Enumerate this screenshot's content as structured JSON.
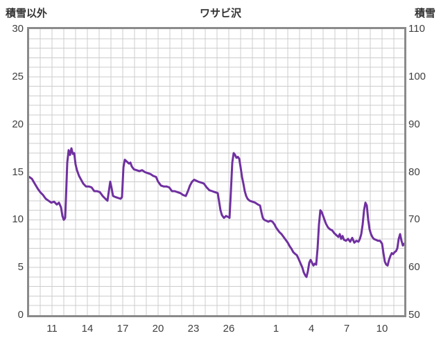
{
  "chart_data": {
    "type": "line",
    "title": "ワサビ沢",
    "series_color": "#7030a0",
    "line_width": 3,
    "left_axis": {
      "label": "積雪以外",
      "min": 0,
      "max": 30,
      "ticks": [
        0,
        5,
        10,
        15,
        20,
        25,
        30
      ]
    },
    "right_axis": {
      "label": "積雪",
      "min": 50,
      "max": 110,
      "ticks": [
        50,
        60,
        70,
        80,
        90,
        100,
        110
      ]
    },
    "x_axis": {
      "tick_labels": [
        "11",
        "14",
        "17",
        "20",
        "23",
        "26",
        "1",
        "4",
        "7",
        "10"
      ],
      "tick_positions": [
        33,
        84,
        135,
        186,
        237,
        288,
        356,
        407,
        458,
        509
      ],
      "x_domain": [
        0,
        541
      ]
    },
    "grid": {
      "color": "#cccccc",
      "horizontal_step": 1,
      "vertical_start": 16,
      "vertical_step": 17
    },
    "points": [
      [
        0,
        14.5
      ],
      [
        4,
        14.3
      ],
      [
        8,
        13.8
      ],
      [
        13,
        13.2
      ],
      [
        16,
        12.9
      ],
      [
        20,
        12.6
      ],
      [
        24,
        12.2
      ],
      [
        28,
        12.0
      ],
      [
        32,
        11.8
      ],
      [
        36,
        11.9
      ],
      [
        40,
        11.6
      ],
      [
        43,
        11.8
      ],
      [
        46,
        11.3
      ],
      [
        48,
        10.4
      ],
      [
        50,
        10.0
      ],
      [
        52,
        10.2
      ],
      [
        53,
        12.0
      ],
      [
        55,
        16.0
      ],
      [
        57,
        17.3
      ],
      [
        59,
        16.8
      ],
      [
        61,
        17.5
      ],
      [
        63,
        16.9
      ],
      [
        65,
        17.0
      ],
      [
        67,
        15.8
      ],
      [
        69,
        15.2
      ],
      [
        72,
        14.6
      ],
      [
        75,
        14.2
      ],
      [
        78,
        13.8
      ],
      [
        82,
        13.5
      ],
      [
        86,
        13.5
      ],
      [
        90,
        13.4
      ],
      [
        94,
        13.0
      ],
      [
        98,
        13.0
      ],
      [
        102,
        12.9
      ],
      [
        106,
        12.5
      ],
      [
        110,
        12.2
      ],
      [
        113,
        12.0
      ],
      [
        115,
        13.0
      ],
      [
        117,
        14.0
      ],
      [
        119,
        13.3
      ],
      [
        121,
        12.5
      ],
      [
        124,
        12.4
      ],
      [
        128,
        12.3
      ],
      [
        132,
        12.2
      ],
      [
        134,
        12.4
      ],
      [
        136,
        15.5
      ],
      [
        138,
        16.3
      ],
      [
        141,
        16.1
      ],
      [
        144,
        15.9
      ],
      [
        146,
        16.0
      ],
      [
        148,
        15.6
      ],
      [
        151,
        15.3
      ],
      [
        155,
        15.2
      ],
      [
        159,
        15.1
      ],
      [
        163,
        15.2
      ],
      [
        167,
        15.0
      ],
      [
        171,
        14.9
      ],
      [
        175,
        14.8
      ],
      [
        179,
        14.6
      ],
      [
        183,
        14.5
      ],
      [
        186,
        14.0
      ],
      [
        190,
        13.6
      ],
      [
        194,
        13.5
      ],
      [
        198,
        13.5
      ],
      [
        202,
        13.4
      ],
      [
        206,
        13.0
      ],
      [
        210,
        13.0
      ],
      [
        214,
        12.9
      ],
      [
        218,
        12.8
      ],
      [
        222,
        12.6
      ],
      [
        226,
        12.5
      ],
      [
        229,
        13.0
      ],
      [
        232,
        13.6
      ],
      [
        235,
        14.0
      ],
      [
        238,
        14.2
      ],
      [
        241,
        14.1
      ],
      [
        244,
        14.0
      ],
      [
        248,
        13.9
      ],
      [
        252,
        13.8
      ],
      [
        256,
        13.4
      ],
      [
        260,
        13.1
      ],
      [
        264,
        13.0
      ],
      [
        268,
        12.9
      ],
      [
        272,
        12.8
      ],
      [
        276,
        11.0
      ],
      [
        278,
        10.5
      ],
      [
        281,
        10.2
      ],
      [
        284,
        10.4
      ],
      [
        287,
        10.3
      ],
      [
        289,
        10.2
      ],
      [
        291,
        13.0
      ],
      [
        293,
        16.0
      ],
      [
        295,
        17.0
      ],
      [
        297,
        16.8
      ],
      [
        299,
        16.5
      ],
      [
        301,
        16.6
      ],
      [
        303,
        16.4
      ],
      [
        305,
        15.5
      ],
      [
        307,
        14.5
      ],
      [
        309,
        13.8
      ],
      [
        311,
        13.0
      ],
      [
        313,
        12.5
      ],
      [
        315,
        12.2
      ],
      [
        318,
        12.0
      ],
      [
        322,
        11.9
      ],
      [
        326,
        11.8
      ],
      [
        330,
        11.6
      ],
      [
        333,
        11.5
      ],
      [
        335,
        10.8
      ],
      [
        337,
        10.2
      ],
      [
        339,
        10.0
      ],
      [
        342,
        9.9
      ],
      [
        345,
        9.8
      ],
      [
        348,
        9.9
      ],
      [
        351,
        9.8
      ],
      [
        354,
        9.5
      ],
      [
        356,
        9.2
      ],
      [
        358,
        9.0
      ],
      [
        361,
        8.7
      ],
      [
        364,
        8.5
      ],
      [
        367,
        8.2
      ],
      [
        370,
        7.9
      ],
      [
        373,
        7.6
      ],
      [
        376,
        7.2
      ],
      [
        378,
        7.0
      ],
      [
        381,
        6.6
      ],
      [
        384,
        6.4
      ],
      [
        386,
        6.3
      ],
      [
        388,
        6.0
      ],
      [
        391,
        5.5
      ],
      [
        394,
        5.0
      ],
      [
        396,
        4.5
      ],
      [
        398,
        4.2
      ],
      [
        400,
        4.0
      ],
      [
        402,
        4.6
      ],
      [
        404,
        5.5
      ],
      [
        406,
        5.8
      ],
      [
        408,
        5.5
      ],
      [
        410,
        5.2
      ],
      [
        412,
        5.4
      ],
      [
        414,
        5.3
      ],
      [
        416,
        7.0
      ],
      [
        418,
        9.5
      ],
      [
        420,
        11.0
      ],
      [
        422,
        10.8
      ],
      [
        424,
        10.4
      ],
      [
        426,
        10.0
      ],
      [
        428,
        9.6
      ],
      [
        431,
        9.2
      ],
      [
        434,
        9.0
      ],
      [
        437,
        8.9
      ],
      [
        440,
        8.6
      ],
      [
        443,
        8.4
      ],
      [
        446,
        8.2
      ],
      [
        448,
        8.5
      ],
      [
        450,
        8.0
      ],
      [
        452,
        8.3
      ],
      [
        454,
        7.9
      ],
      [
        457,
        7.8
      ],
      [
        460,
        8.0
      ],
      [
        463,
        7.7
      ],
      [
        466,
        8.1
      ],
      [
        469,
        7.6
      ],
      [
        472,
        7.8
      ],
      [
        475,
        7.7
      ],
      [
        477,
        8.0
      ],
      [
        479,
        8.5
      ],
      [
        481,
        9.5
      ],
      [
        483,
        11.0
      ],
      [
        485,
        11.8
      ],
      [
        487,
        11.5
      ],
      [
        489,
        10.0
      ],
      [
        491,
        9.0
      ],
      [
        493,
        8.5
      ],
      [
        495,
        8.2
      ],
      [
        497,
        8.0
      ],
      [
        500,
        7.9
      ],
      [
        503,
        7.8
      ],
      [
        506,
        7.8
      ],
      [
        509,
        7.5
      ],
      [
        511,
        6.5
      ],
      [
        513,
        5.6
      ],
      [
        515,
        5.3
      ],
      [
        517,
        5.2
      ],
      [
        519,
        5.8
      ],
      [
        521,
        6.2
      ],
      [
        523,
        6.5
      ],
      [
        525,
        6.4
      ],
      [
        527,
        6.6
      ],
      [
        529,
        6.7
      ],
      [
        531,
        7.0
      ],
      [
        533,
        8.0
      ],
      [
        535,
        8.5
      ],
      [
        537,
        7.8
      ],
      [
        539,
        7.3
      ],
      [
        541,
        7.5
      ]
    ]
  }
}
